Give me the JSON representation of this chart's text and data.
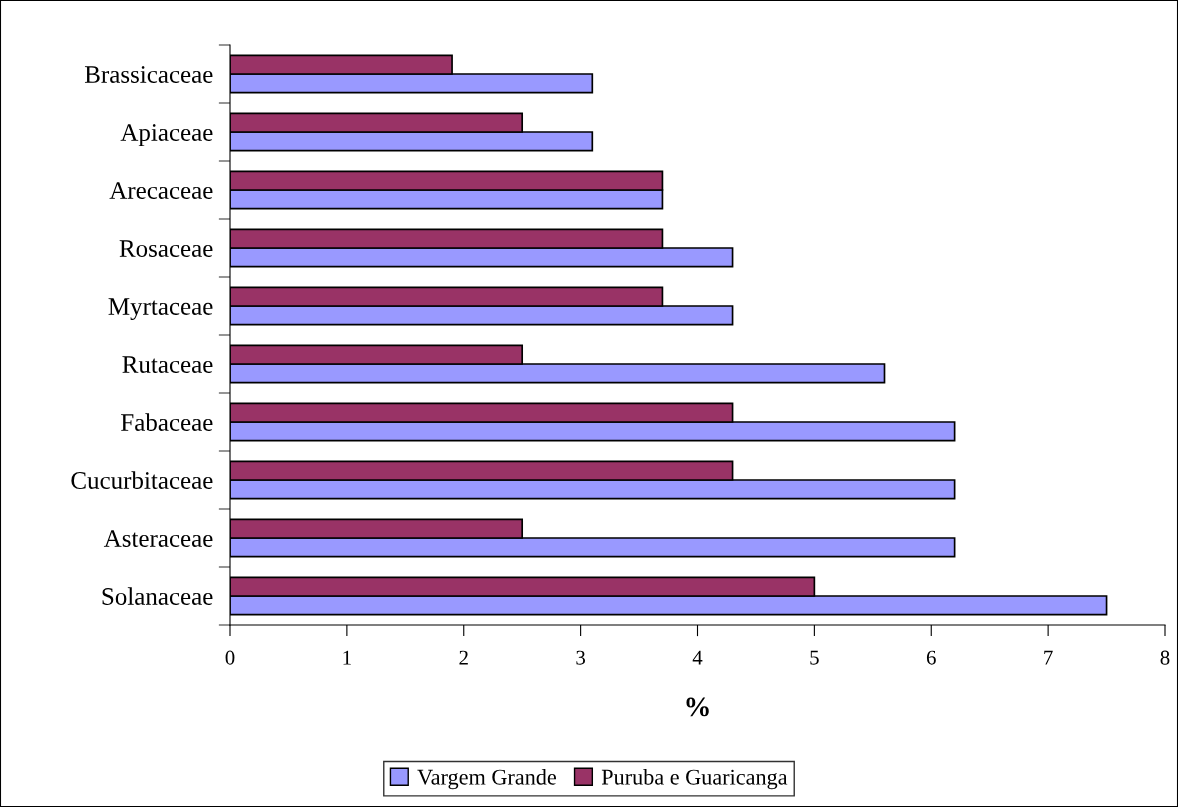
{
  "chart_data": {
    "type": "bar",
    "orientation": "horizontal",
    "xlabel": "%",
    "categories": [
      "Brassicaceae",
      "Apiaceae",
      "Arecaceae",
      "Rosaceae",
      "Myrtaceae",
      "Rutaceae",
      "Fabaceae",
      "Cucurbitaceae",
      "Asteraceae",
      "Solanaceae"
    ],
    "series": [
      {
        "name": "Vargem Grande",
        "color": "#9999ff",
        "values": [
          3.1,
          3.1,
          3.7,
          4.3,
          4.3,
          5.6,
          6.2,
          6.2,
          6.2,
          7.5
        ]
      },
      {
        "name": "Puruba e Guaricanga",
        "color": "#993366",
        "values": [
          1.9,
          2.5,
          3.7,
          3.7,
          3.7,
          2.5,
          4.3,
          4.3,
          2.5,
          5.0
        ]
      }
    ],
    "xlim": [
      0,
      8
    ],
    "xticks": [
      0,
      1,
      2,
      3,
      4,
      5,
      6,
      7,
      8
    ],
    "grid": false,
    "legend": "bottom"
  }
}
